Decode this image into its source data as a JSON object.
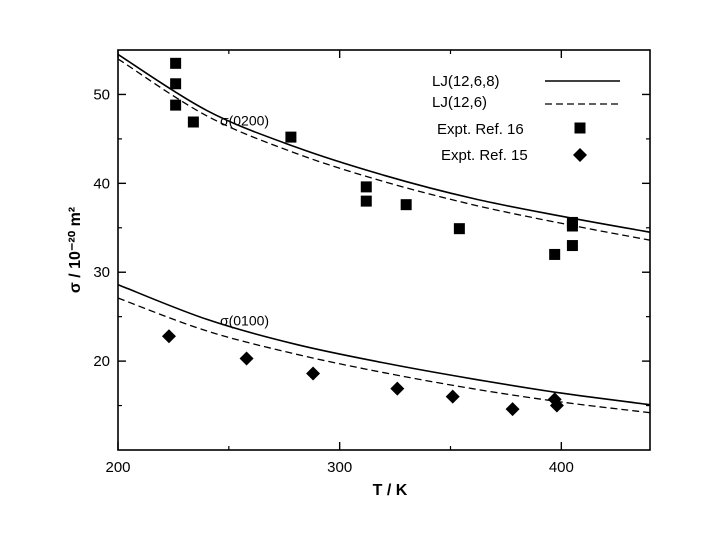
{
  "chart_data": {
    "type": "scatter",
    "xlabel": "T / K",
    "ylabel": "σ / 10⁻²⁰ m²",
    "xlim": [
      200,
      440
    ],
    "ylim": [
      10,
      55
    ],
    "x_ticks": [
      200,
      300,
      400
    ],
    "y_ticks": [
      20,
      30,
      40,
      50
    ],
    "x_tick_labels": [
      "200",
      "300",
      "400"
    ],
    "y_tick_labels": [
      "20",
      "30",
      "40",
      "50"
    ],
    "grid": false,
    "legend_position": "top-right",
    "annotations": [
      {
        "text": "σ(0200)",
        "x": 246,
        "y": 46.5
      },
      {
        "text": "σ(0100)",
        "x": 246,
        "y": 24.0
      }
    ],
    "series": [
      {
        "name": "LJ(12,6,8)",
        "kind": "line",
        "style": "solid",
        "group": "σ(0200)",
        "x": [
          200,
          240,
          280,
          320,
          360,
          400,
          440
        ],
        "y": [
          54.5,
          48.2,
          44.1,
          40.9,
          38.3,
          36.3,
          34.5
        ]
      },
      {
        "name": "LJ(12,6)",
        "kind": "line",
        "style": "dashed",
        "group": "σ(0200)",
        "x": [
          200,
          240,
          280,
          320,
          360,
          400,
          440
        ],
        "y": [
          54.0,
          47.6,
          43.4,
          40.2,
          37.6,
          35.5,
          33.6
        ]
      },
      {
        "name": "LJ(12,6,8)",
        "kind": "line",
        "style": "solid",
        "group": "σ(0100)",
        "x": [
          200,
          240,
          280,
          320,
          360,
          400,
          440
        ],
        "y": [
          28.6,
          24.7,
          21.9,
          19.8,
          18.0,
          16.4,
          15.1
        ]
      },
      {
        "name": "LJ(12,6)",
        "kind": "line",
        "style": "dashed",
        "group": "σ(0100)",
        "x": [
          200,
          240,
          280,
          320,
          360,
          400,
          440
        ],
        "y": [
          27.1,
          23.4,
          20.8,
          18.7,
          16.9,
          15.4,
          14.2
        ]
      },
      {
        "name": "Expt. Ref. 16",
        "kind": "points",
        "marker": "square",
        "x": [
          226,
          226,
          226,
          234,
          278,
          312,
          312,
          330,
          354,
          397,
          405,
          405,
          405
        ],
        "y": [
          53.5,
          51.2,
          48.8,
          46.9,
          45.2,
          39.6,
          38.0,
          37.6,
          34.9,
          32.0,
          35.6,
          35.2,
          33.0
        ]
      },
      {
        "name": "Expt. Ref. 15",
        "kind": "points",
        "marker": "diamond",
        "x": [
          223,
          258,
          288,
          326,
          351,
          378,
          397,
          398
        ],
        "y": [
          22.8,
          20.3,
          18.6,
          16.9,
          16.0,
          14.6,
          15.7,
          15.0
        ]
      }
    ],
    "legend": [
      {
        "label": "LJ(12,6,8)",
        "symbol": "solid-line"
      },
      {
        "label": "LJ(12,6)",
        "symbol": "dashed-line"
      },
      {
        "label": "Expt. Ref. 16",
        "symbol": "square"
      },
      {
        "label": "Expt. Ref. 15",
        "symbol": "diamond"
      }
    ],
    "colors": {
      "ink": "#000000",
      "background": "#ffffff"
    }
  }
}
